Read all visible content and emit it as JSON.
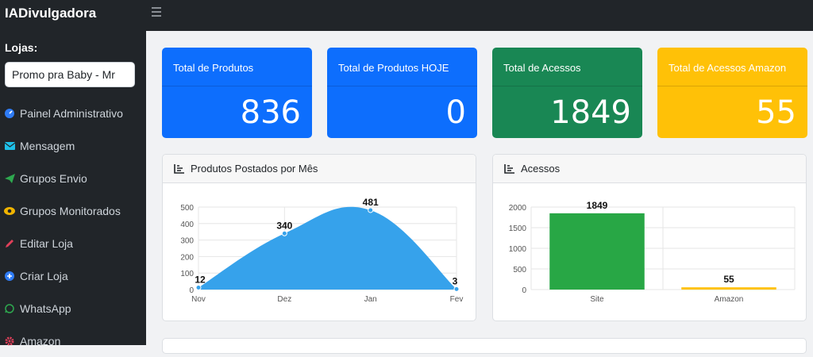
{
  "app": {
    "title": "IADivulgadora"
  },
  "sidebar": {
    "stores_label": "Lojas:",
    "store_selected": "Promo pra Baby - Mr",
    "items": [
      {
        "label": "Painel Administrativo",
        "icon": "dashboard-icon",
        "color": "#2f7cf6"
      },
      {
        "label": "Mensagem",
        "icon": "envelope-icon",
        "color": "#1ec0e8"
      },
      {
        "label": "Grupos Envio",
        "icon": "send-icon",
        "color": "#2ea84f"
      },
      {
        "label": "Grupos Monitorados",
        "icon": "eye-icon",
        "color": "#f0b400"
      },
      {
        "label": "Editar Loja",
        "icon": "pencil-icon",
        "color": "#e0405a"
      },
      {
        "label": "Criar Loja",
        "icon": "plus-circle-icon",
        "color": "#2f7cf6"
      },
      {
        "label": "WhatsApp",
        "icon": "whatsapp-icon",
        "color": "#2ea84f"
      },
      {
        "label": "Amazon",
        "icon": "gear-icon",
        "color": "#e0405a"
      }
    ]
  },
  "stats": [
    {
      "title": "Total de Produtos",
      "value": "836",
      "color": "#0d6efd"
    },
    {
      "title": "Total de Produtos HOJE",
      "value": "0",
      "color": "#0d6efd"
    },
    {
      "title": "Total de Acessos",
      "value": "1849",
      "color": "#198754"
    },
    {
      "title": "Total de Acessos Amazon",
      "value": "55",
      "color": "#ffc107"
    }
  ],
  "panels": {
    "products": {
      "title": "Produtos Postados por Mês"
    },
    "access": {
      "title": "Acessos"
    }
  },
  "chart_data": [
    {
      "type": "area",
      "title": "Produtos Postados por Mês",
      "categories": [
        "Nov",
        "Dez",
        "Jan",
        "Fev"
      ],
      "values": [
        12,
        340,
        481,
        3
      ],
      "ylim": [
        0,
        500
      ],
      "yticks": [
        0,
        100,
        200,
        300,
        400,
        500
      ],
      "grid": true,
      "color": "#36a2eb"
    },
    {
      "type": "bar",
      "title": "Acessos",
      "categories": [
        "Site",
        "Amazon"
      ],
      "values": [
        1849,
        55
      ],
      "colors": [
        "#28a745",
        "#ffc107"
      ],
      "ylim": [
        0,
        2000
      ],
      "yticks": [
        0,
        500,
        1000,
        1500,
        2000
      ],
      "grid": true
    }
  ]
}
